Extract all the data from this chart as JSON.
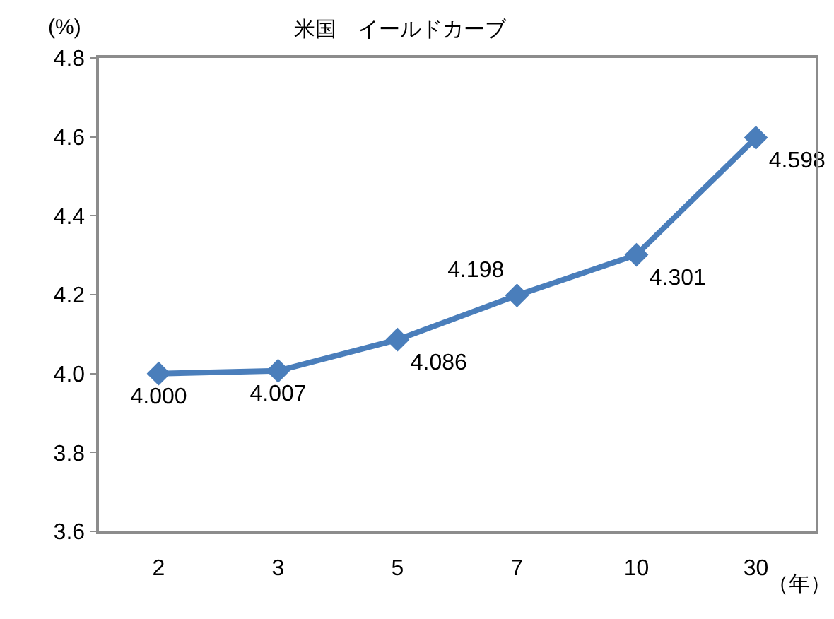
{
  "chart_data": {
    "type": "line",
    "title": "米国　イールドカーブ",
    "xlabel": "（年）",
    "ylabel": "(%)",
    "categories": [
      "2",
      "3",
      "5",
      "7",
      "10",
      "30"
    ],
    "series": [
      {
        "color": "#4a7ebb",
        "values": [
          4.0,
          4.007,
          4.086,
          4.198,
          4.301,
          4.598
        ],
        "value_labels": [
          "4.000",
          "4.007",
          "4.086",
          "4.198",
          "4.301",
          "4.598"
        ]
      }
    ],
    "ylim": [
      3.6,
      4.8
    ],
    "yticks": [
      3.6,
      3.8,
      {
        "value": 4,
        "label": "4.0"
      },
      4.2,
      4.4,
      4.6,
      4.8
    ],
    "marker": "diamond",
    "line_style": "solid"
  }
}
